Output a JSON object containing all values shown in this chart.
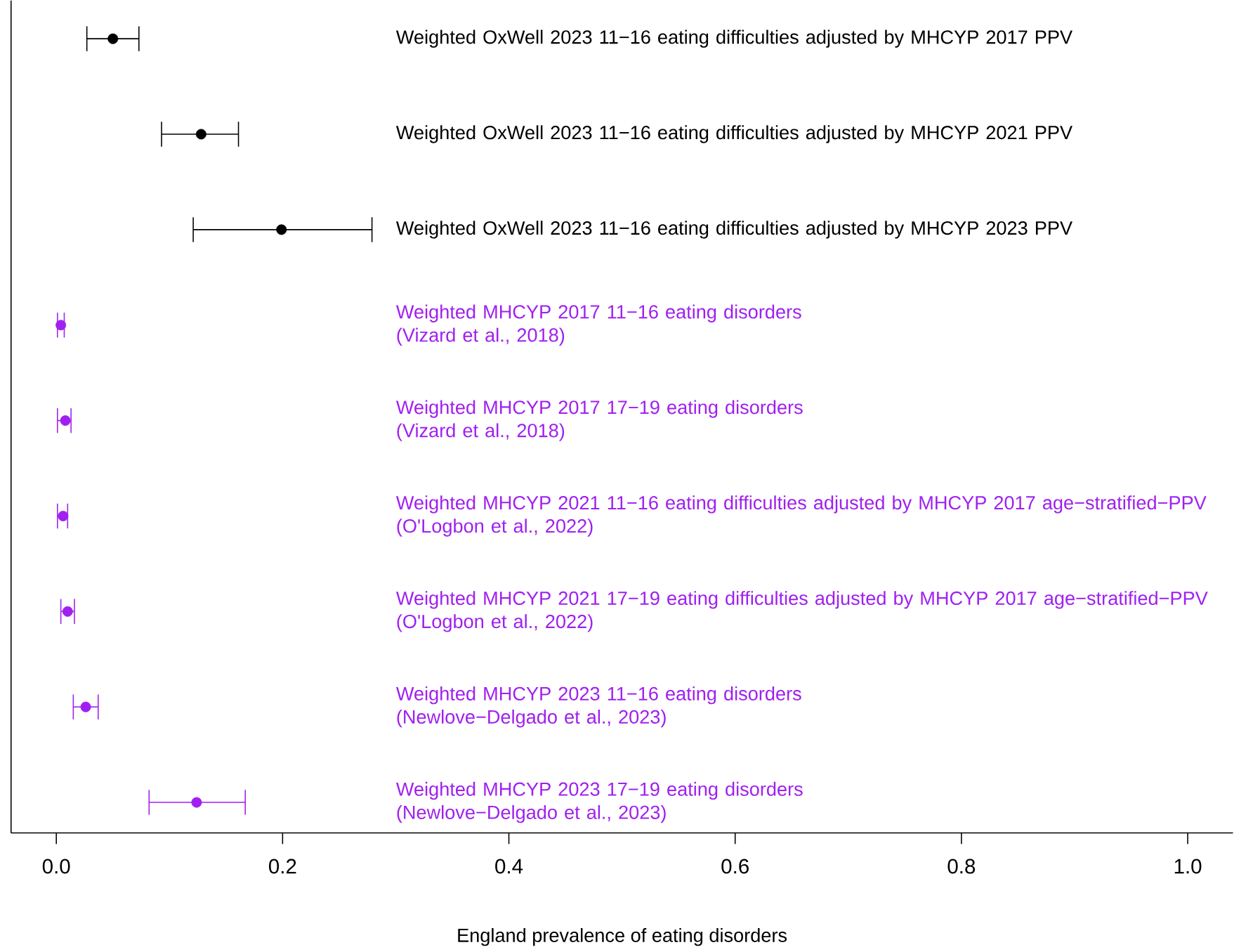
{
  "chart_data": {
    "type": "scatter",
    "orientation": "horizontal",
    "xlabel": "England prevalence of eating disorders",
    "categories": [
      "Weighted OxWell 2023 11−16 eating difficulties adjusted by MHCYP 2017 PPV",
      "Weighted OxWell 2023 11−16 eating difficulties adjusted by MHCYP 2021 PPV",
      "Weighted OxWell 2023 11−16 eating difficulties adjusted by MHCYP 2023 PPV",
      "Weighted MHCYP 2017 11−16 eating disorders\n(Vizard et al., 2018)",
      "Weighted MHCYP 2017 17−19 eating disorders\n(Vizard et al., 2018)",
      "Weighted MHCYP 2021 11−16 eating difficulties adjusted by MHCYP 2017 age−stratified−PPV\n(O'Logbon et al., 2022)",
      "Weighted MHCYP 2021 17−19 eating difficulties adjusted by MHCYP 2017 age−stratified−PPV\n(O'Logbon et al., 2022)",
      "Weighted MHCYP 2023 11−16 eating disorders\n(Newlove−Delgado et al., 2023)",
      "Weighted MHCYP 2023 17−19 eating disorders\n(Newlove−Delgado et al., 2023)"
    ],
    "series": [
      {
        "color": "#000000",
        "values": [
          0.05,
          0.128,
          0.199,
          null,
          null,
          null,
          null,
          null,
          null
        ],
        "errors": [
          [
            0.027,
            0.073
          ],
          [
            0.093,
            0.161
          ],
          [
            0.121,
            0.279
          ],
          null,
          null,
          null,
          null,
          null,
          null
        ]
      },
      {
        "color": "#a020f0",
        "values": [
          null,
          null,
          null,
          0.004,
          0.008,
          0.006,
          0.01,
          0.026,
          0.124
        ],
        "errors": [
          null,
          null,
          null,
          [
            0.001,
            0.007
          ],
          [
            0.001,
            0.013
          ],
          [
            0.001,
            0.01
          ],
          [
            0.004,
            0.016
          ],
          [
            0.015,
            0.037
          ],
          [
            0.082,
            0.167
          ]
        ]
      }
    ],
    "xlim": [
      -0.04,
      1.04
    ],
    "xticks": [
      {
        "value": 0,
        "label": "0.0"
      },
      0.2,
      0.4,
      0.6,
      0.8,
      {
        "value": 1,
        "label": "1.0"
      }
    ],
    "marker": "circle",
    "tick_labels": "x"
  }
}
